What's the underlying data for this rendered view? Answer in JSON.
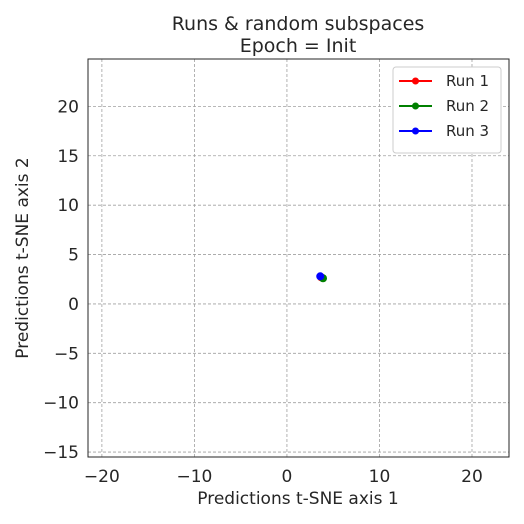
{
  "chart_data": {
    "type": "scatter",
    "title": "Runs & random subspaces",
    "subtitle": "Epoch = Init",
    "xlabel": "Predictions t-SNE axis 1",
    "ylabel": "Predictions t-SNE axis 2",
    "xlim": [
      -21.5,
      24
    ],
    "ylim": [
      -15.5,
      24.8
    ],
    "xticks": [
      -20,
      -10,
      0,
      10,
      20
    ],
    "yticks": [
      -15,
      -10,
      -5,
      0,
      5,
      10,
      15,
      20
    ],
    "xtick_labels": [
      "−20",
      "−10",
      "0",
      "10",
      "20"
    ],
    "ytick_labels": [
      "−15",
      "−10",
      "−5",
      "0",
      "5",
      "10",
      "15",
      "20"
    ],
    "grid": true,
    "legend_position": "top-right",
    "series": [
      {
        "name": "Run 1",
        "color": "#ff0000",
        "points": [
          {
            "x": 3.7,
            "y": 2.7
          }
        ]
      },
      {
        "name": "Run 2",
        "color": "#008000",
        "points": [
          {
            "x": 3.9,
            "y": 2.6
          }
        ]
      },
      {
        "name": "Run 3",
        "color": "#0000ff",
        "points": [
          {
            "x": 3.6,
            "y": 2.8
          }
        ]
      }
    ]
  }
}
